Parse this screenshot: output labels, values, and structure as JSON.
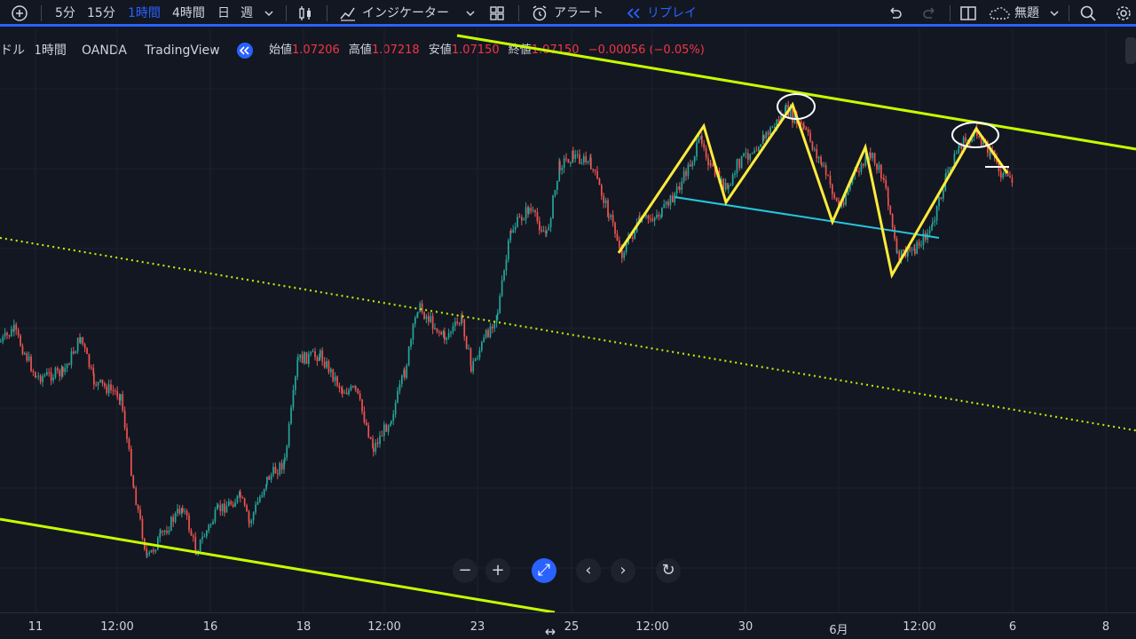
{
  "toolbar": {
    "intervals": [
      "5分",
      "15分",
      "1時間",
      "4時間",
      "日",
      "週"
    ],
    "active_interval": "1時間",
    "indicators_label": "インジケーター",
    "alert_label": "アラート",
    "replay_label": "リプレイ",
    "layout_name": "無題"
  },
  "legend": {
    "symbol_fragment": "ドル",
    "interval": "1時間",
    "broker": "OANDA",
    "platform": "TradingView",
    "open_label": "始値",
    "open": "1.07206",
    "high_label": "高値",
    "high": "1.07218",
    "low_label": "安値",
    "low": "1.07150",
    "close_label": "終値",
    "close": "1.07150",
    "change": "−0.00056 (−0.05%)"
  },
  "x_axis": {
    "ticks": [
      "11",
      "12:00",
      "16",
      "18",
      "12:00",
      "23",
      "25",
      "12:00",
      "30",
      "6月",
      "12:00",
      "6",
      "8"
    ]
  },
  "colors": {
    "background": "#131722",
    "up_candle": "#26a69a",
    "down_candle": "#ef5350",
    "channel_line": "#c6ff00",
    "zigzag": "#ffeb3b",
    "neckline": "#26c6da",
    "accent": "#2962ff"
  },
  "nav_buttons": [
    "−",
    "+",
    "⤢",
    "‹",
    "›",
    "↻"
  ]
}
